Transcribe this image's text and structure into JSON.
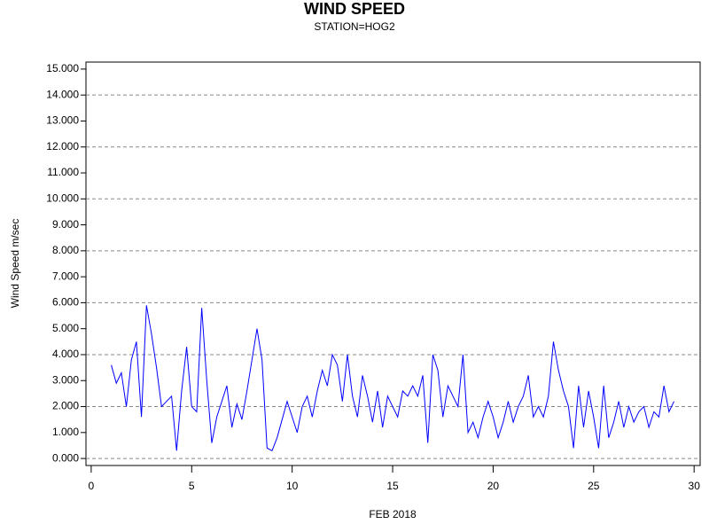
{
  "chart_data": {
    "type": "line",
    "title": "WIND SPEED",
    "subtitle": "STATION=HOG2",
    "xlabel": "FEB 2018",
    "ylabel": "Wind Speed m/sec",
    "color": "#0000ff",
    "grid": true,
    "grid_style": "dashed",
    "x": [
      1,
      1.25,
      1.5,
      1.75,
      2,
      2.25,
      2.5,
      2.75,
      3,
      3.25,
      3.5,
      3.75,
      4,
      4.25,
      4.5,
      4.75,
      5,
      5.25,
      5.5,
      5.75,
      6,
      6.25,
      6.5,
      6.75,
      7,
      7.25,
      7.5,
      7.75,
      8,
      8.25,
      8.5,
      8.75,
      9,
      9.25,
      9.5,
      9.75,
      10,
      10.25,
      10.5,
      10.75,
      11,
      11.25,
      11.5,
      11.75,
      12,
      12.25,
      12.5,
      12.75,
      13,
      13.25,
      13.5,
      13.75,
      14,
      14.25,
      14.5,
      14.75,
      15,
      15.25,
      15.5,
      15.75,
      16,
      16.25,
      16.5,
      16.75,
      17,
      17.25,
      17.5,
      17.75,
      18,
      18.25,
      18.5,
      18.75,
      19,
      19.25,
      19.5,
      19.75,
      20,
      20.25,
      20.5,
      20.75,
      21,
      21.25,
      21.5,
      21.75,
      22,
      22.25,
      22.5,
      22.75,
      23,
      23.25,
      23.5,
      23.75,
      24,
      24.25,
      24.5,
      24.75,
      25,
      25.25,
      25.5,
      25.75,
      26,
      26.25,
      26.5,
      26.75,
      27,
      27.25,
      27.5,
      27.75,
      28,
      28.25,
      28.5,
      28.75,
      29
    ],
    "values": [
      3.6,
      2.9,
      3.3,
      2.0,
      3.8,
      4.5,
      1.6,
      5.9,
      4.8,
      3.5,
      2.0,
      2.2,
      2.4,
      0.3,
      2.6,
      4.3,
      2.0,
      1.8,
      5.8,
      3.0,
      0.6,
      1.6,
      2.2,
      2.8,
      1.2,
      2.1,
      1.5,
      2.6,
      3.8,
      5.0,
      3.8,
      0.4,
      0.3,
      0.8,
      1.5,
      2.2,
      1.6,
      1.0,
      2.0,
      2.4,
      1.6,
      2.6,
      3.4,
      2.8,
      4.0,
      3.6,
      2.2,
      4.0,
      2.4,
      1.6,
      3.2,
      2.4,
      1.4,
      2.6,
      1.2,
      2.4,
      2.0,
      1.6,
      2.6,
      2.4,
      2.8,
      2.4,
      3.2,
      0.6,
      4.0,
      3.4,
      1.6,
      2.8,
      2.4,
      2.0,
      4.0,
      1.0,
      1.4,
      0.8,
      1.6,
      2.2,
      1.6,
      0.8,
      1.4,
      2.2,
      1.4,
      2.0,
      2.4,
      3.2,
      1.6,
      2.0,
      1.6,
      2.4,
      4.5,
      3.4,
      2.6,
      2.0,
      0.4,
      2.8,
      1.2,
      2.6,
      1.6,
      0.4,
      2.8,
      0.8,
      1.4,
      2.2,
      1.2,
      2.0,
      1.4,
      1.8,
      2.0,
      1.2,
      1.8,
      1.6,
      2.8,
      1.8,
      2.2
    ],
    "xlim": [
      -0.26,
      30.3
    ],
    "xticks": [
      0,
      5,
      10,
      15,
      20,
      25,
      30
    ],
    "ylim": [
      -0.27,
      15.27
    ],
    "yticks": [
      {
        "value": 0,
        "label": "0.000"
      },
      {
        "value": 1,
        "label": "1.000"
      },
      {
        "value": 2,
        "label": "2.000"
      },
      {
        "value": 3,
        "label": "3.000"
      },
      {
        "value": 4,
        "label": "4.000"
      },
      {
        "value": 5,
        "label": "5.000"
      },
      {
        "value": 6,
        "label": "6.000"
      },
      {
        "value": 7,
        "label": "7.000"
      },
      {
        "value": 8,
        "label": "8.000"
      },
      {
        "value": 9,
        "label": "9.000"
      },
      {
        "value": 10,
        "label": "10.000"
      },
      {
        "value": 11,
        "label": "11.000"
      },
      {
        "value": 12,
        "label": "12.000"
      },
      {
        "value": 13,
        "label": "13.000"
      },
      {
        "value": 14,
        "label": "14.000"
      },
      {
        "value": 15,
        "label": "15.000"
      }
    ]
  }
}
